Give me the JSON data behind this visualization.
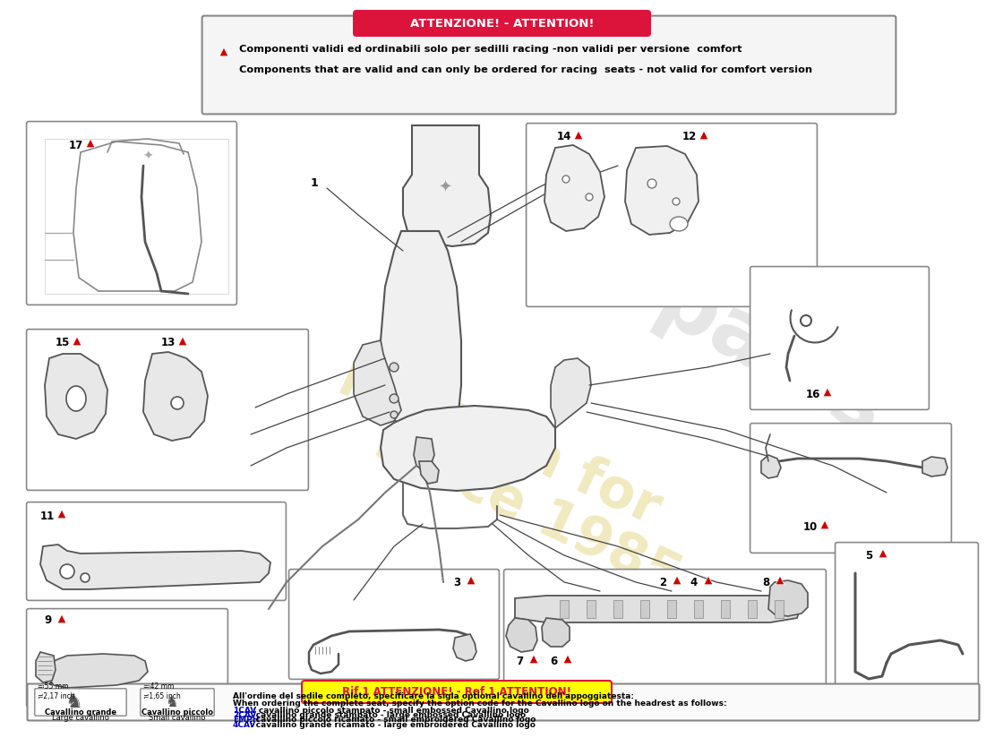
{
  "bg_color": "#ffffff",
  "title_attention": "ATTENZIONE! - ATTENTION!",
  "attention_text_it": "Componenti validi ed ordinabili solo per sedilli racing -non validi per versione  comfort",
  "attention_text_en": "Components that are valid and can only be ordered for racing  seats - not valid for comfort version",
  "bottom_title": "Rif.1 ATTENZIONE! - Ref.1 ATTENTION!",
  "bottom_it": "All'ordine del sedile completo, specificare la sigla optional cavallino dell'appoggiatesta:",
  "bottom_en": "When ordering the complete seat, specify the option code for the Cavallino logo on the headrest as follows:",
  "cav_lines": [
    {
      "code": "1CAV",
      "sep": " : ",
      "text": "cavallino piccolo stampato - small embossed Cavallino logo"
    },
    {
      "code": "2CAV",
      "sep": ": ",
      "text": "cavallino grande stampato - large embossed Cavallino logo"
    },
    {
      "code": "EMPH",
      "sep": ": ",
      "text": "cavallino piccolo ricamato - small embroidered Cavallino logo"
    },
    {
      "code": "4CAV",
      "sep": ": ",
      "text": "cavallino grande ricamato - large embroidered Cavallino logo"
    }
  ],
  "cav_grande_sz": "≕55 mm\n≓2,17 inch",
  "cav_piccolo_sz": "≕42 mm\n≓1,65 inch",
  "cav_grande_lbl1": "Cavallino grande",
  "cav_grande_lbl2": "Large cavallino",
  "cav_piccolo_lbl1": "Cavallino piccolo",
  "cav_piccolo_lbl2": "Small cavallino",
  "red": "#cc0000",
  "crimson": "#dc143c",
  "yellow": "#ffff00",
  "blue": "#0000bb",
  "box_edge": "#888888",
  "line_color": "#444444",
  "part_color": "#555555",
  "wm_color": "#c8a800",
  "gp_color": "#cccccc"
}
